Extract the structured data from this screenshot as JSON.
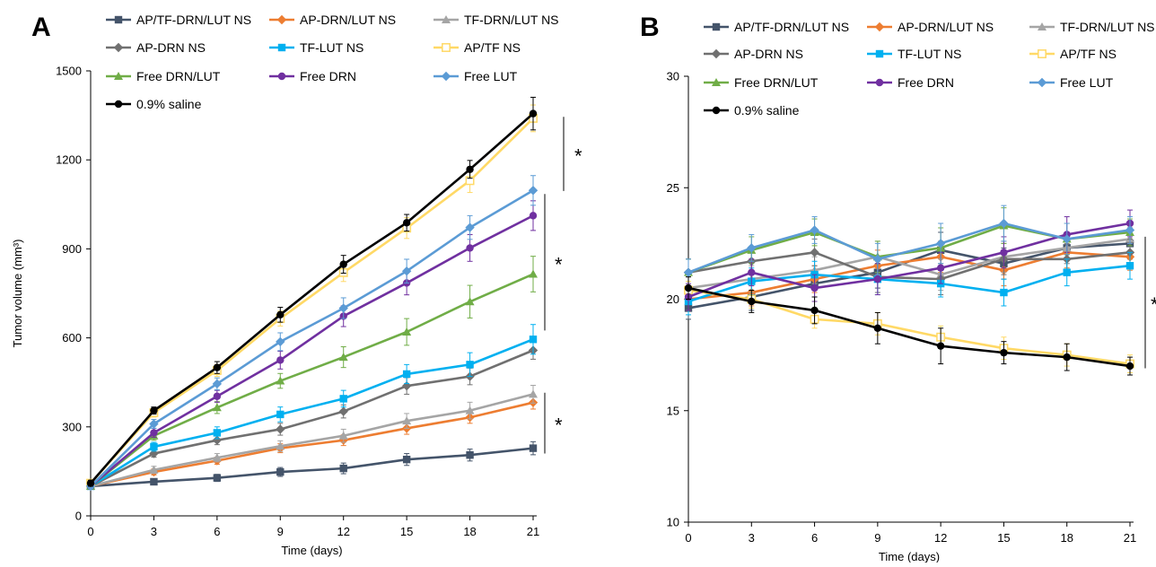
{
  "chart_data": [
    {
      "type": "line",
      "panel_label": "A",
      "xlabel": "Time (days)",
      "ylabel": "Tumor volume (mm³)",
      "x": [
        0,
        3,
        6,
        9,
        12,
        15,
        18,
        21
      ],
      "xlim": [
        0,
        21
      ],
      "ylim": [
        0,
        1500
      ],
      "yticks": [
        0,
        300,
        600,
        900,
        1200,
        1500
      ],
      "grid": false,
      "legend_position": "top",
      "series": [
        {
          "name": "AP/TF-DRN/LUT NS",
          "color": "#44546A",
          "marker": "square",
          "values": [
            100,
            115,
            128,
            148,
            160,
            190,
            205,
            228
          ],
          "error": [
            8,
            10,
            12,
            15,
            18,
            20,
            20,
            22
          ]
        },
        {
          "name": "AP-DRN/LUT NS",
          "color": "#ED7D31",
          "marker": "diamond",
          "values": [
            100,
            148,
            186,
            228,
            255,
            295,
            332,
            382
          ],
          "error": [
            8,
            10,
            12,
            15,
            18,
            20,
            20,
            22
          ]
        },
        {
          "name": "TF-DRN/LUT NS",
          "color": "#A5A5A5",
          "marker": "triangle",
          "values": [
            100,
            155,
            196,
            235,
            270,
            320,
            355,
            410
          ],
          "error": [
            8,
            12,
            14,
            18,
            22,
            25,
            28,
            30
          ]
        },
        {
          "name": "AP-DRN NS",
          "color": "#707070",
          "marker": "diamond",
          "values": [
            100,
            210,
            255,
            292,
            352,
            438,
            470,
            558
          ],
          "error": [
            8,
            12,
            15,
            20,
            22,
            28,
            28,
            30
          ]
        },
        {
          "name": "TF-LUT NS",
          "color": "#00B0F0",
          "marker": "square",
          "values": [
            100,
            233,
            280,
            342,
            395,
            478,
            510,
            595
          ],
          "error": [
            8,
            15,
            20,
            25,
            28,
            32,
            40,
            50
          ]
        },
        {
          "name": "AP/TF NS",
          "color": "#FFD966",
          "marker": "open-square",
          "values": [
            110,
            348,
            490,
            665,
            820,
            970,
            1130,
            1340
          ],
          "error": [
            10,
            15,
            20,
            25,
            30,
            35,
            40,
            45
          ]
        },
        {
          "name": "Free DRN/LUT",
          "color": "#70AD47",
          "marker": "triangle",
          "values": [
            100,
            270,
            365,
            455,
            535,
            620,
            722,
            815
          ],
          "error": [
            8,
            15,
            20,
            25,
            35,
            45,
            55,
            60
          ]
        },
        {
          "name": "Free DRN",
          "color": "#7030A0",
          "marker": "circle",
          "values": [
            100,
            280,
            403,
            525,
            673,
            785,
            903,
            1012
          ],
          "error": [
            8,
            15,
            20,
            30,
            35,
            40,
            45,
            50
          ]
        },
        {
          "name": "Free LUT",
          "color": "#5B9BD5",
          "marker": "diamond",
          "values": [
            100,
            310,
            445,
            587,
            700,
            825,
            972,
            1097
          ],
          "error": [
            8,
            15,
            20,
            30,
            35,
            40,
            40,
            50
          ]
        },
        {
          "name": "0.9% saline",
          "color": "#000000",
          "marker": "circle",
          "values": [
            110,
            355,
            500,
            678,
            848,
            988,
            1168,
            1356
          ],
          "error": [
            10,
            12,
            20,
            25,
            30,
            28,
            30,
            55
          ]
        }
      ],
      "significance": [
        {
          "label": "*",
          "from": 1095,
          "to": 1345
        },
        {
          "label": "*",
          "from": 625,
          "to": 1085
        },
        {
          "label": "*",
          "from": 210,
          "to": 415
        }
      ]
    },
    {
      "type": "line",
      "panel_label": "B",
      "xlabel": "Time (days)",
      "ylabel": "",
      "x": [
        0,
        3,
        6,
        9,
        12,
        15,
        18,
        21
      ],
      "xlim": [
        0,
        21
      ],
      "ylim": [
        10,
        30
      ],
      "yticks": [
        10,
        15,
        20,
        25,
        30
      ],
      "grid": false,
      "legend_position": "top",
      "series": [
        {
          "name": "AP/TF-DRN/LUT NS",
          "color": "#44546A",
          "marker": "square",
          "values": [
            19.6,
            20.1,
            20.7,
            21.2,
            22.2,
            21.6,
            22.3,
            22.5
          ],
          "error": [
            0.5,
            0.6,
            0.6,
            0.7,
            0.8,
            0.7,
            0.7,
            0.7
          ]
        },
        {
          "name": "AP-DRN/LUT NS",
          "color": "#ED7D31",
          "marker": "diamond",
          "values": [
            20.0,
            20.3,
            20.9,
            21.5,
            21.9,
            21.3,
            22.1,
            21.9
          ],
          "error": [
            0.5,
            0.6,
            0.6,
            0.7,
            0.7,
            0.7,
            0.7,
            0.6
          ]
        },
        {
          "name": "TF-DRN/LUT NS",
          "color": "#A5A5A5",
          "marker": "triangle",
          "values": [
            20.5,
            20.9,
            21.3,
            21.9,
            21.1,
            21.9,
            22.3,
            22.7
          ],
          "error": [
            0.5,
            0.6,
            0.6,
            0.7,
            0.7,
            0.7,
            0.7,
            0.6
          ]
        },
        {
          "name": "AP-DRN NS",
          "color": "#707070",
          "marker": "diamond",
          "values": [
            21.2,
            21.7,
            22.1,
            21.0,
            20.9,
            21.8,
            21.8,
            22.1
          ],
          "error": [
            0.6,
            0.6,
            0.6,
            0.7,
            0.7,
            0.7,
            0.7,
            0.6
          ]
        },
        {
          "name": "TF-LUT NS",
          "color": "#00B0F0",
          "marker": "square",
          "values": [
            19.9,
            20.8,
            21.1,
            20.9,
            20.7,
            20.3,
            21.2,
            21.5
          ],
          "error": [
            0.6,
            0.6,
            0.6,
            0.7,
            0.6,
            0.6,
            0.6,
            0.6
          ]
        },
        {
          "name": "AP/TF NS",
          "color": "#FFD966",
          "marker": "open-square",
          "values": [
            20.4,
            20.0,
            19.1,
            18.9,
            18.3,
            17.8,
            17.5,
            17.1
          ],
          "error": [
            0.4,
            0.4,
            0.4,
            0.5,
            0.5,
            0.5,
            0.5,
            0.4
          ]
        },
        {
          "name": "Free DRN/LUT",
          "color": "#70AD47",
          "marker": "triangle",
          "values": [
            21.2,
            22.2,
            23.0,
            21.9,
            22.3,
            23.3,
            22.7,
            23.0
          ],
          "error": [
            0.6,
            0.6,
            0.6,
            0.7,
            0.9,
            0.8,
            0.7,
            0.6
          ]
        },
        {
          "name": "Free DRN",
          "color": "#7030A0",
          "marker": "circle",
          "values": [
            20.1,
            21.2,
            20.5,
            20.9,
            21.4,
            22.1,
            22.9,
            23.4
          ],
          "error": [
            0.6,
            0.6,
            0.6,
            0.7,
            0.7,
            0.7,
            0.8,
            0.6
          ]
        },
        {
          "name": "Free LUT",
          "color": "#5B9BD5",
          "marker": "diamond",
          "values": [
            21.2,
            22.3,
            23.1,
            21.8,
            22.5,
            23.4,
            22.7,
            23.1
          ],
          "error": [
            0.6,
            0.6,
            0.6,
            0.7,
            0.9,
            0.8,
            0.7,
            0.6
          ]
        },
        {
          "name": "0.9% saline",
          "color": "#000000",
          "marker": "circle",
          "values": [
            20.5,
            19.9,
            19.5,
            18.7,
            17.9,
            17.6,
            17.4,
            17.0
          ],
          "error": [
            0.5,
            0.5,
            0.6,
            0.7,
            0.8,
            0.5,
            0.6,
            0.4
          ]
        }
      ],
      "significance": [
        {
          "label": "*",
          "from": 16.9,
          "to": 22.8
        }
      ]
    }
  ]
}
